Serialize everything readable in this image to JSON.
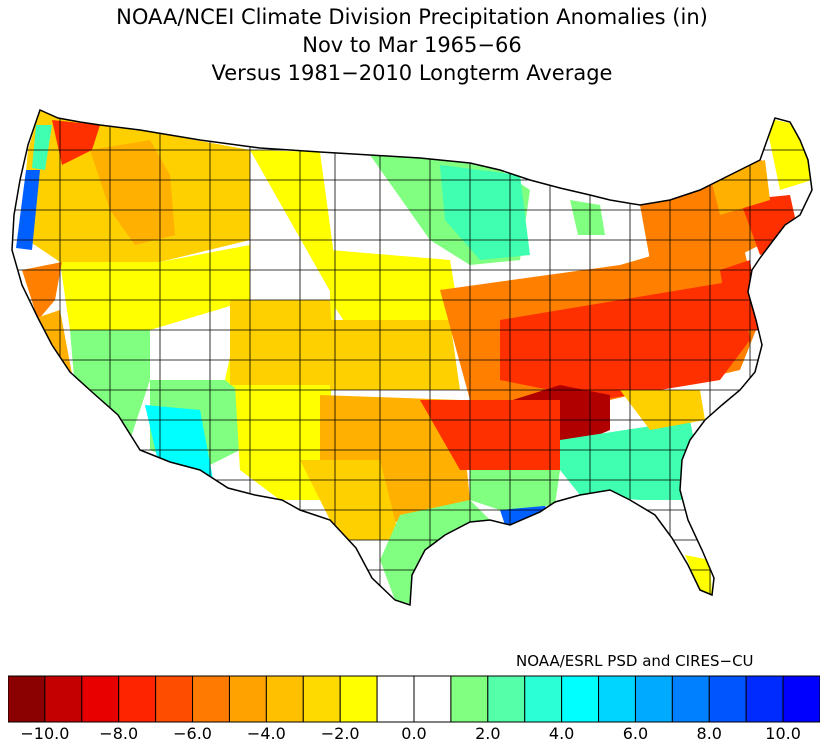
{
  "title": {
    "line1": "NOAA/NCEI Climate Division Precipitation Anomalies (in)",
    "line2": "Nov to Mar 1965−66",
    "line3": "Versus 1981−2010 Longterm Average"
  },
  "credit": "NOAA/ESRL PSD and CIRES−CU",
  "colorbar": {
    "colors": [
      "#8b0000",
      "#c40000",
      "#e80000",
      "#ff2400",
      "#ff4d00",
      "#ff7a00",
      "#ffa200",
      "#ffc000",
      "#ffda00",
      "#ffff00",
      "#ffffff",
      "#ffffff",
      "#80ff80",
      "#55ffaa",
      "#2bffd5",
      "#00ffff",
      "#00d5ff",
      "#00aaff",
      "#0080ff",
      "#0055ff",
      "#002bff",
      "#0000ff"
    ],
    "tick_labels": [
      "−10.0",
      "−8.0",
      "−6.0",
      "−4.0",
      "−2.0",
      "0.0",
      "2.0",
      "4.0",
      "6.0",
      "8.0",
      "10.0"
    ]
  },
  "map": {
    "region": "Contiguous United States climate divisions",
    "color_legend": {
      "dark_red": "#b00000",
      "red": "#ff3000",
      "orange": "#ff8000",
      "light_orange": "#ffb000",
      "gold": "#ffd000",
      "yellow": "#ffff00",
      "white": "#ffffff",
      "green": "#80ff80",
      "aqua_green": "#40ffb0",
      "cyan": "#00ffff",
      "blue": "#0060ff"
    }
  }
}
